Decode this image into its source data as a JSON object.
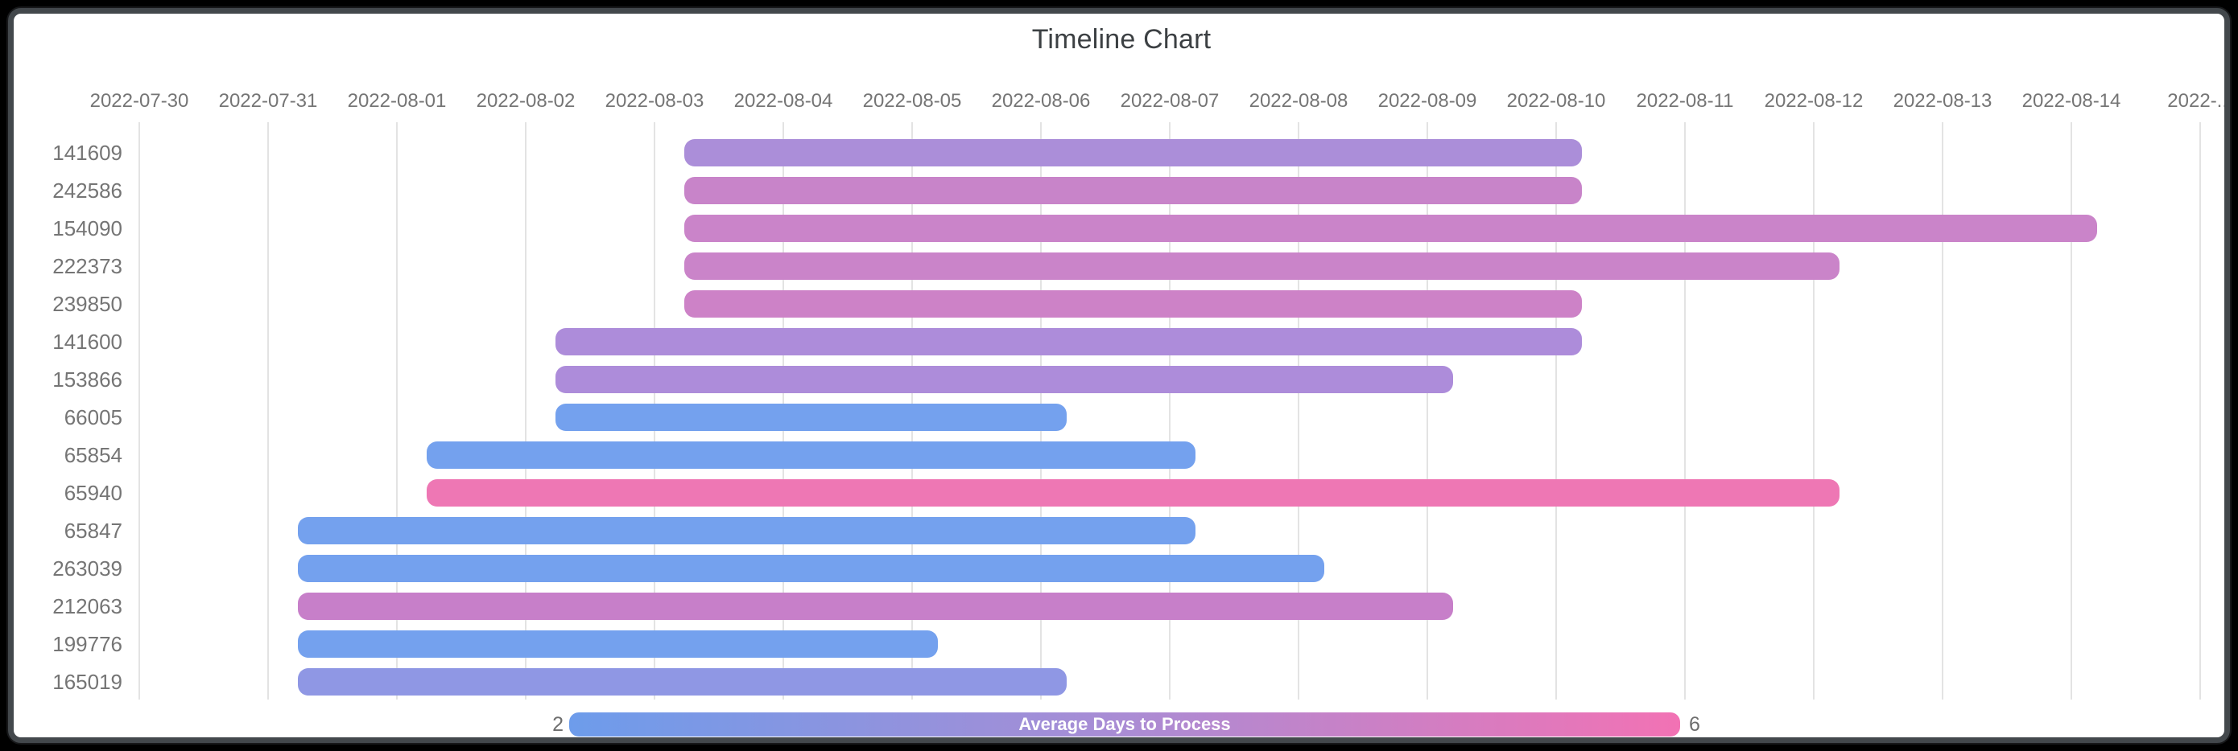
{
  "title": "Timeline Chart",
  "chart_data": {
    "type": "bar",
    "subtype": "horizontal-timeline-gantt",
    "title": "Timeline Chart",
    "base_date": "2022-07-30",
    "x_tick_labels": [
      "2022-07-30",
      "2022-07-31",
      "2022-08-01",
      "2022-08-02",
      "2022-08-03",
      "2022-08-04",
      "2022-08-05",
      "2022-08-06",
      "2022-08-07",
      "2022-08-08",
      "2022-08-09",
      "2022-08-10",
      "2022-08-11",
      "2022-08-12",
      "2022-08-13",
      "2022-08-14",
      "2022-..."
    ],
    "grid": "on",
    "rows": [
      {
        "id": "141609",
        "start": "2022-08-03",
        "end": "2022-08-10",
        "color": "#ab8ed9"
      },
      {
        "id": "242586",
        "start": "2022-08-03",
        "end": "2022-08-10",
        "color": "#c884c9"
      },
      {
        "id": "154090",
        "start": "2022-08-03",
        "end": "2022-08-14",
        "color": "#ca84c9"
      },
      {
        "id": "222373",
        "start": "2022-08-03",
        "end": "2022-08-12",
        "color": "#ca84c9"
      },
      {
        "id": "239850",
        "start": "2022-08-03",
        "end": "2022-08-10",
        "color": "#cd82c7"
      },
      {
        "id": "141600",
        "start": "2022-08-02",
        "end": "2022-08-10",
        "color": "#ad8cda"
      },
      {
        "id": "153866",
        "start": "2022-08-02",
        "end": "2022-08-09",
        "color": "#ad8cda"
      },
      {
        "id": "66005",
        "start": "2022-08-02",
        "end": "2022-08-06",
        "color": "#74a1ee"
      },
      {
        "id": "65854",
        "start": "2022-08-01",
        "end": "2022-08-07",
        "color": "#74a1ee"
      },
      {
        "id": "65940",
        "start": "2022-08-01",
        "end": "2022-08-12",
        "color": "#ee77b4"
      },
      {
        "id": "65847",
        "start": "2022-07-31",
        "end": "2022-08-07",
        "color": "#74a1ee"
      },
      {
        "id": "263039",
        "start": "2022-07-31",
        "end": "2022-08-08",
        "color": "#74a1ee"
      },
      {
        "id": "212063",
        "start": "2022-07-31",
        "end": "2022-08-09",
        "color": "#c77fc9"
      },
      {
        "id": "199776",
        "start": "2022-07-31",
        "end": "2022-08-05",
        "color": "#74a1ee"
      },
      {
        "id": "165019",
        "start": "2022-07-31",
        "end": "2022-08-06",
        "color": "#8f97e4"
      }
    ],
    "legend": {
      "title": "Average Days to Process",
      "min_label": "2",
      "max_label": "6",
      "gradient": [
        "#6d9ceb",
        "#aa8cd4",
        "#f272b4"
      ],
      "position": "bottom"
    },
    "colors": {
      "gridline": "#e3e3e3",
      "axis_text": "#757575",
      "title_text": "#3c4043",
      "frame": "#43484c"
    }
  }
}
